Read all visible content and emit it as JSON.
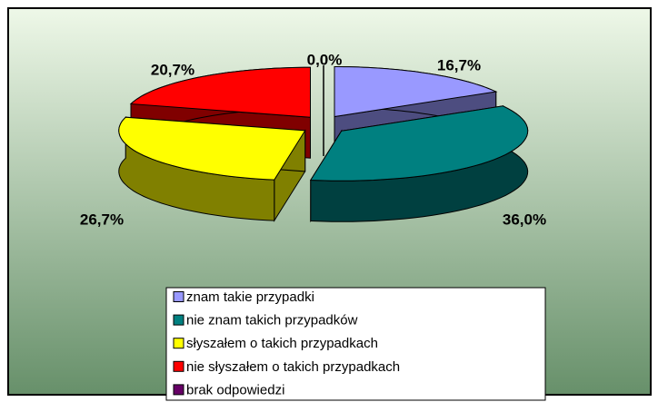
{
  "chart_data": {
    "type": "pie3d",
    "categories": [
      "znam takie przypadki",
      "nie znam takich przypadków",
      "słyszałem o takich przypadkach",
      "nie słyszałem o takich przypadkach",
      "brak odpowiedzi"
    ],
    "values": [
      16.7,
      36.0,
      26.7,
      20.7,
      0.0
    ],
    "value_labels": [
      "16,7%",
      "36,0%",
      "26,7%",
      "20,7%",
      "0,0%"
    ],
    "colors": [
      "#9999ff",
      "#008080",
      "#ffff00",
      "#ff0000",
      "#660066"
    ],
    "legend": "bottom"
  }
}
